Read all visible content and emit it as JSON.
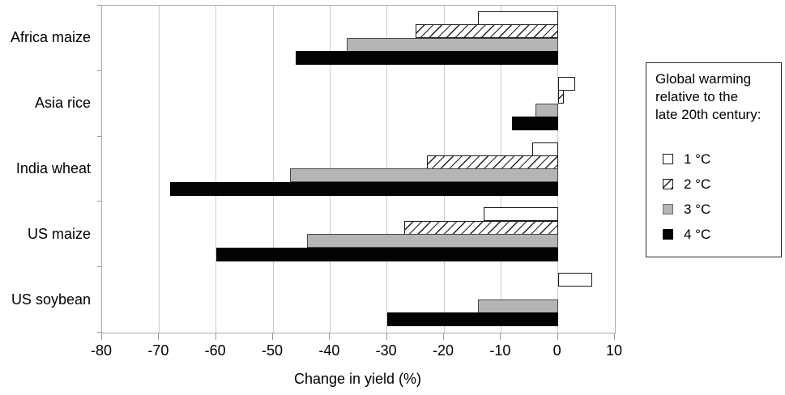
{
  "chart_data": {
    "type": "bar",
    "orientation": "horizontal",
    "xlabel": "Change in yield (%)",
    "xlim": [
      -80,
      10
    ],
    "xticks": [
      -80,
      -70,
      -60,
      -50,
      -40,
      -30,
      -20,
      -10,
      0,
      10
    ],
    "grid": true,
    "categories": [
      "Africa maize",
      "Asia rice",
      "India wheat",
      "US maize",
      "US soybean"
    ],
    "series": [
      {
        "name": "1 °C",
        "style": "white",
        "values": [
          -14,
          3,
          -4.5,
          -13,
          6
        ]
      },
      {
        "name": "2 °C",
        "style": "hatched",
        "values": [
          -25,
          1,
          -23,
          -27,
          0
        ]
      },
      {
        "name": "3 °C",
        "style": "gray",
        "values": [
          -37,
          -4,
          -47,
          -44,
          -14
        ]
      },
      {
        "name": "4 °C",
        "style": "black",
        "values": [
          -46,
          -8,
          -68,
          -60,
          -30
        ]
      }
    ],
    "legend": {
      "title": "Global warming\nrelative to the\nlate 20th century:",
      "entries": [
        "1 °C",
        "2 °C",
        "3 °C",
        "4 °C"
      ],
      "position": "right"
    }
  },
  "colors": {
    "bar_white": "#ffffff",
    "bar_hatch_line": "#1f1f1f",
    "bar_gray": "#b5b5b5",
    "bar_black": "#030303",
    "gridline": "#cbcbcb",
    "axis": "#9a9a9a",
    "text": "#000000"
  }
}
